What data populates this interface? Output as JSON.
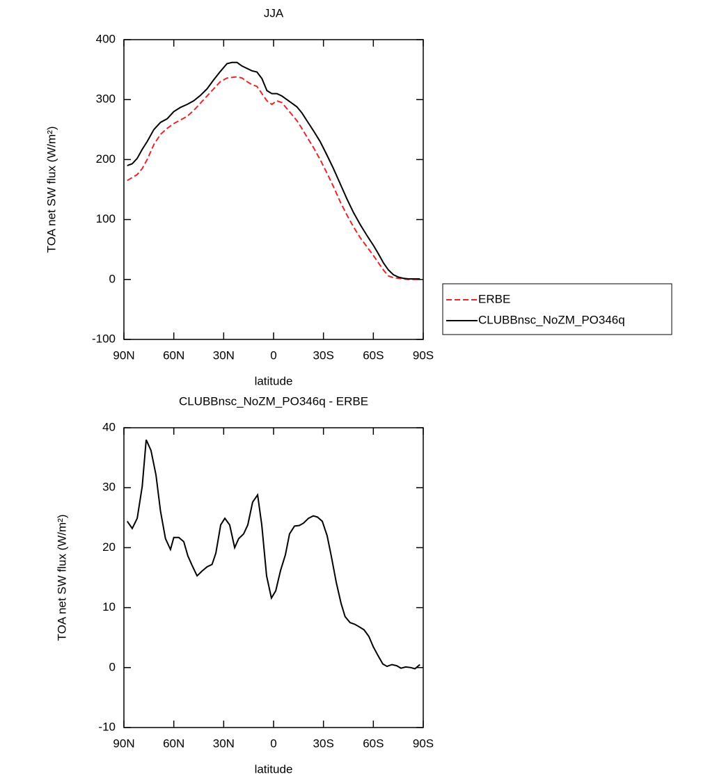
{
  "chart_data": [
    {
      "type": "line",
      "title": "JJA",
      "xlabel": "latitude",
      "ylabel": "TOA net SW flux (W/m²)",
      "x": [
        88,
        85,
        82,
        79,
        76,
        72,
        68,
        64,
        60,
        56,
        52,
        48,
        44,
        40,
        36,
        32,
        28,
        25,
        22,
        19,
        16,
        13,
        10,
        7,
        4,
        1,
        -2,
        -5,
        -8,
        -11,
        -14,
        -17,
        -20,
        -24,
        -28,
        -32,
        -36,
        -40,
        -44,
        -48,
        -52,
        -56,
        -60,
        -63,
        -66,
        -69,
        -72,
        -75,
        -78,
        -81,
        -84,
        -88
      ],
      "series": [
        {
          "name": "ERBE",
          "color": "#e8262a",
          "linestyle": "dashed",
          "values": [
            165,
            170,
            175,
            185,
            200,
            225,
            242,
            252,
            260,
            266,
            272,
            282,
            294,
            306,
            318,
            330,
            336,
            337,
            338,
            336,
            330,
            325,
            322,
            310,
            298,
            292,
            298,
            295,
            285,
            275,
            265,
            252,
            238,
            220,
            200,
            178,
            155,
            130,
            108,
            88,
            70,
            55,
            40,
            28,
            16,
            6,
            3,
            2,
            1,
            0,
            0,
            0
          ]
        },
        {
          "name": "CLUBBnsc_NoZM_PO346q",
          "color": "#000000",
          "linestyle": "solid",
          "values": [
            190,
            193,
            202,
            217,
            230,
            250,
            262,
            268,
            280,
            287,
            292,
            298,
            307,
            318,
            333,
            347,
            360,
            362,
            362,
            356,
            352,
            348,
            346,
            335,
            315,
            310,
            310,
            306,
            300,
            294,
            288,
            278,
            265,
            248,
            230,
            208,
            185,
            160,
            135,
            112,
            92,
            74,
            57,
            43,
            28,
            16,
            8,
            4,
            2,
            1,
            1,
            1
          ]
        }
      ],
      "xlim": [
        90,
        -90
      ],
      "xticks": [
        {
          "value": 90,
          "label": "90N"
        },
        {
          "value": 60,
          "label": "60N"
        },
        {
          "value": 30,
          "label": "30N"
        },
        0,
        {
          "value": -30,
          "label": "30S"
        },
        {
          "value": -60,
          "label": "60S"
        },
        {
          "value": -90,
          "label": "90S"
        }
      ],
      "ylim": [
        -100,
        400
      ],
      "yticks": [
        -100,
        0,
        100,
        200,
        300,
        400
      ],
      "legend": "right"
    },
    {
      "type": "line",
      "title": "CLUBBnsc_NoZM_PO346q - ERBE",
      "xlabel": "latitude",
      "ylabel": "TOA net SW flux (W/m²)",
      "x": [
        88,
        85,
        82,
        79,
        76.6,
        73.7,
        70.7,
        68,
        65,
        62,
        60,
        57,
        54,
        51.5,
        48.6,
        46,
        43,
        40,
        37,
        34.7,
        31.8,
        29.3,
        26.4,
        23.4,
        21,
        18,
        15.5,
        12.6,
        9.6,
        7.1,
        4.2,
        1.3,
        -1.3,
        -4.2,
        -7.1,
        -9.6,
        -12.6,
        -15.5,
        -18,
        -21,
        -23.9,
        -26.4,
        -29.3,
        -32.2,
        -34.7,
        -37.7,
        -40.6,
        -43,
        -46,
        -49,
        -51.5,
        -54.4,
        -57.3,
        -59.9,
        -62.8,
        -65.7,
        -68.2,
        -71.2,
        -74.1,
        -76.6,
        -79.5,
        -82.5,
        -85,
        -88
      ],
      "color": "#000000",
      "values": [
        24.4,
        23.2,
        24.9,
        30.2,
        38,
        36.2,
        32.1,
        26.1,
        21.5,
        19.7,
        21.7,
        21.7,
        21,
        18.6,
        16.8,
        15.3,
        16.1,
        16.8,
        17.2,
        19.1,
        23.8,
        24.9,
        23.8,
        20,
        21.5,
        22.3,
        23.8,
        27.6,
        28.8,
        23.8,
        15.3,
        11.6,
        12.8,
        16.2,
        18.8,
        22.3,
        23.6,
        23.7,
        24.1,
        24.9,
        25.3,
        25.1,
        24.4,
        22,
        18.6,
        14.2,
        10.7,
        8.5,
        7.5,
        7.2,
        6.8,
        6.3,
        5.2,
        3.5,
        2,
        0.6,
        0.2,
        0.5,
        0.3,
        -0.1,
        0.1,
        0,
        -0.2,
        0.5
      ],
      "xlim": [
        90,
        -90
      ],
      "xticks": [
        {
          "value": 90,
          "label": "90N"
        },
        {
          "value": 60,
          "label": "60N"
        },
        {
          "value": 30,
          "label": "30N"
        },
        0,
        {
          "value": -30,
          "label": "30S"
        },
        {
          "value": -60,
          "label": "60S"
        },
        {
          "value": -90,
          "label": "90S"
        }
      ],
      "ylim": [
        -10,
        40
      ],
      "yticks": [
        -10,
        0,
        10,
        20,
        30,
        40
      ]
    }
  ]
}
